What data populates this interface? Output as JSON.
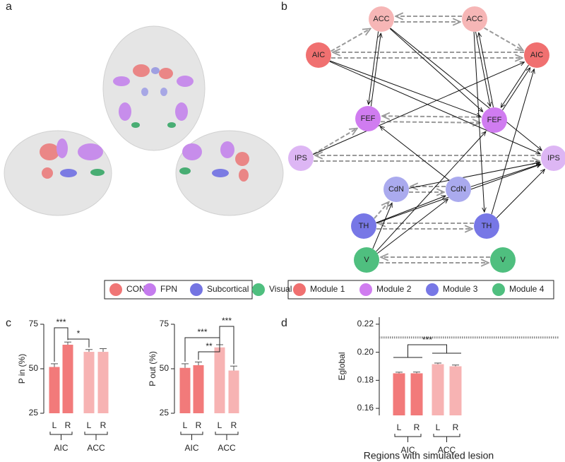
{
  "panel_labels": [
    "a",
    "b",
    "c",
    "d"
  ],
  "brain_legend": [
    {
      "name": "CON",
      "color": "#f07575"
    },
    {
      "name": "FPN",
      "color": "#c57cee"
    },
    {
      "name": "Subcortical",
      "color": "#7474e2"
    },
    {
      "name": "Visual",
      "color": "#4fbf7f"
    }
  ],
  "network": {
    "nodes": [
      {
        "label": "ACC",
        "color": "#f6b6b6"
      },
      {
        "label": "ACC",
        "color": "#f6b6b6"
      },
      {
        "label": "AIC",
        "color": "#f07070"
      },
      {
        "label": "AIC",
        "color": "#f07070"
      },
      {
        "label": "FEF",
        "color": "#d07cf0"
      },
      {
        "label": "FEF",
        "color": "#d07cf0"
      },
      {
        "label": "IPS",
        "color": "#ddb6f4"
      },
      {
        "label": "IPS",
        "color": "#ddb6f4"
      },
      {
        "label": "CdN",
        "color": "#aaaaee"
      },
      {
        "label": "CdN",
        "color": "#aaaaee"
      },
      {
        "label": "TH",
        "color": "#7777e6"
      },
      {
        "label": "TH",
        "color": "#7777e6"
      },
      {
        "label": "V",
        "color": "#4fbf7f"
      },
      {
        "label": "V",
        "color": "#4fbf7f"
      }
    ],
    "legend": [
      {
        "name": "Module 1",
        "color": "#f07070"
      },
      {
        "name": "Module 2",
        "color": "#d07cf0"
      },
      {
        "name": "Module 3",
        "color": "#7777e6"
      },
      {
        "name": "Module 4",
        "color": "#4fbf7f"
      }
    ]
  },
  "chart_data": [
    {
      "type": "bar",
      "ylabel": "P in (%)",
      "categories": [
        "L",
        "R",
        "L",
        "R"
      ],
      "groups": [
        "AIC",
        "ACC"
      ],
      "values": [
        51,
        63.5,
        59.5,
        59.5
      ],
      "errors": [
        1.8,
        1.5,
        1.3,
        1.8
      ],
      "colors": [
        "#f27a7a",
        "#f27a7a",
        "#f7b3b3",
        "#f7b3b3"
      ],
      "ylim": [
        25,
        75
      ],
      "yticks": [
        25,
        50,
        75
      ],
      "annotations": [
        "***",
        "*"
      ]
    },
    {
      "type": "bar",
      "ylabel": "P out (%)",
      "categories": [
        "L",
        "R",
        "L",
        "R"
      ],
      "groups": [
        "AIC",
        "ACC"
      ],
      "values": [
        50.5,
        52,
        62,
        49
      ],
      "errors": [
        2.3,
        1.8,
        1.5,
        2.5
      ],
      "colors": [
        "#f27a7a",
        "#f27a7a",
        "#f7b3b3",
        "#f7b3b3"
      ],
      "ylim": [
        25,
        75
      ],
      "yticks": [
        25,
        50,
        75
      ],
      "annotations": [
        "***",
        "**",
        "***"
      ]
    },
    {
      "type": "bar",
      "ylabel": "Eglobal",
      "xlabel": "Regions with simulated lesion",
      "categories": [
        "L",
        "R",
        "L",
        "R"
      ],
      "groups": [
        "AIC",
        "ACC"
      ],
      "values": [
        0.185,
        0.185,
        0.1915,
        0.19
      ],
      "errors": [
        0.0008,
        0.0009,
        0.0008,
        0.0009
      ],
      "colors": [
        "#f27a7a",
        "#f27a7a",
        "#f7b3b3",
        "#f7b3b3"
      ],
      "reference_line": 0.2105,
      "ylim": [
        0.155,
        0.225
      ],
      "yticks": [
        0.16,
        0.18,
        {
          "value": 0.2,
          "label": "0.20"
        },
        0.22
      ],
      "annotations": [
        "***"
      ]
    }
  ]
}
